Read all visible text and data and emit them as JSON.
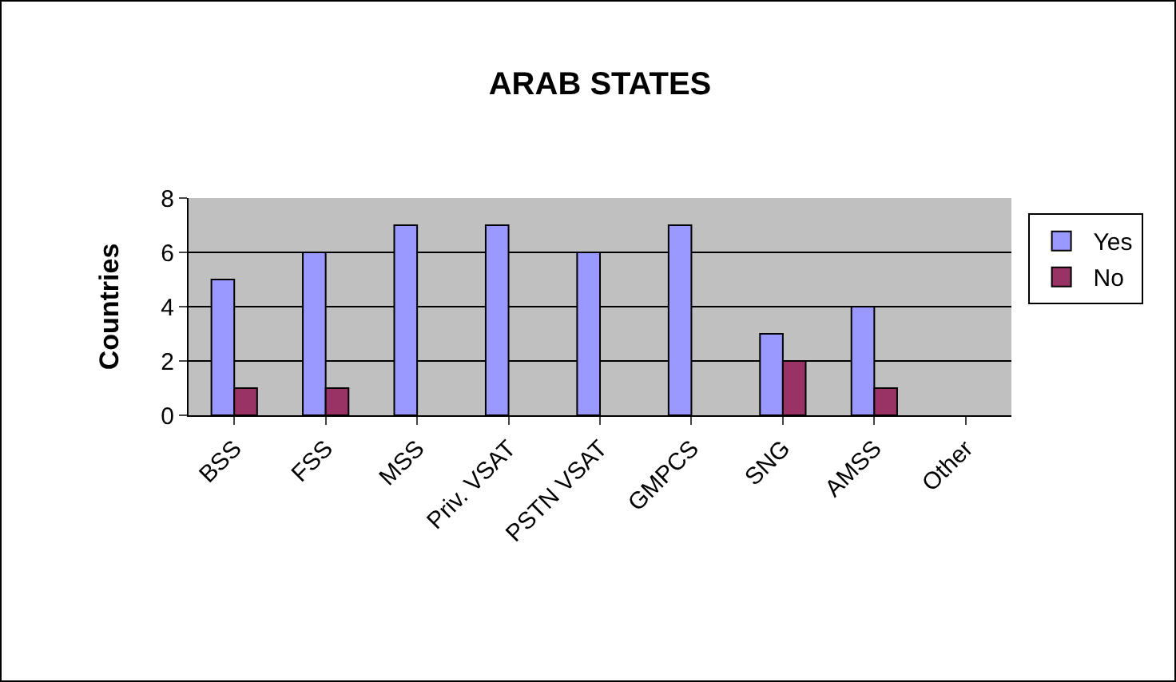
{
  "chart_data": {
    "type": "bar",
    "title": "ARAB STATES",
    "ylabel": "Countries",
    "categories": [
      "BSS",
      "FSS",
      "MSS",
      "Priv. VSAT",
      "PSTN VSAT",
      "GMPCS",
      "SNG",
      "AMSS",
      "Other"
    ],
    "series": [
      {
        "name": "Yes",
        "color": "#9999ff",
        "values": [
          5,
          6,
          7,
          7,
          6,
          7,
          3,
          4,
          null
        ]
      },
      {
        "name": "No",
        "color": "#993366",
        "values": [
          1,
          1,
          null,
          null,
          null,
          null,
          2,
          1,
          null
        ]
      }
    ],
    "ylim": [
      0,
      8
    ],
    "yticks": [
      0,
      2,
      4,
      6,
      8
    ],
    "grid": "y",
    "legend": "right"
  }
}
